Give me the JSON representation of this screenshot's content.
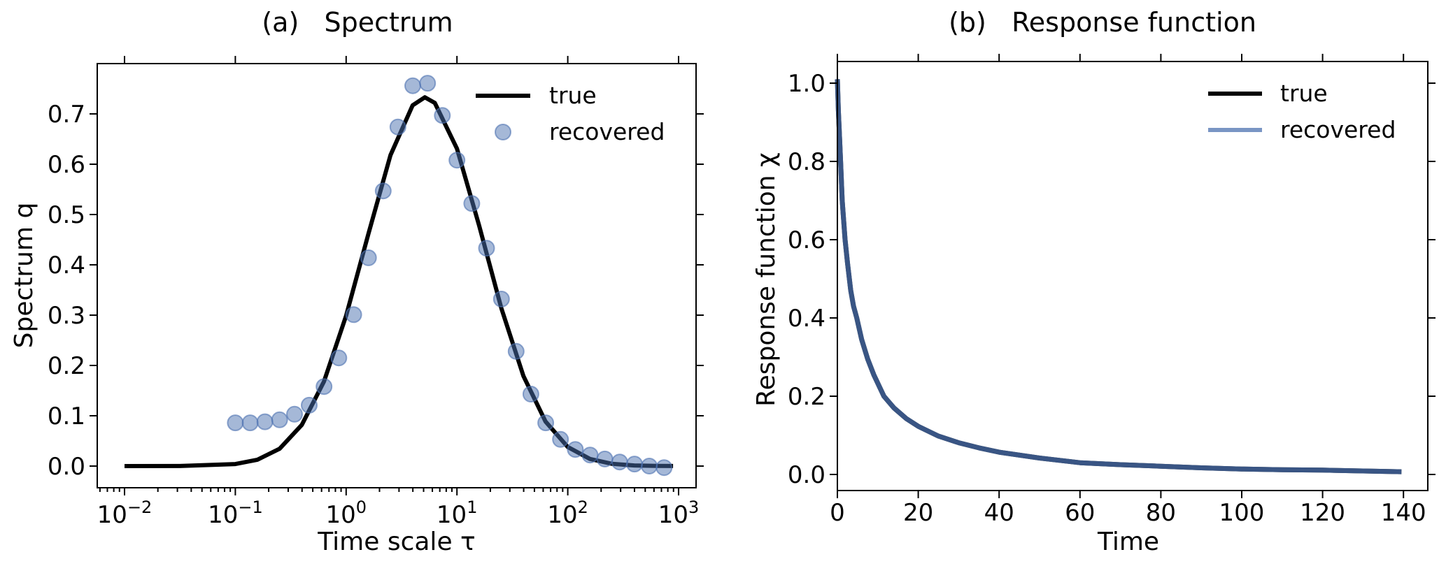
{
  "chart_data": [
    {
      "type": "line",
      "panel": "a",
      "title": "(a)   Spectrum",
      "xlabel": "Time scale τ",
      "ylabel": "Spectrum q",
      "xscale": "log",
      "xlim": [
        0.0063,
        1400
      ],
      "ylim": [
        -0.045,
        0.79
      ],
      "grid": false,
      "legend_position": "top-right",
      "x_ticks": [
        {
          "value": 0.01,
          "base": "10",
          "exp": "−2"
        },
        {
          "value": 0.1,
          "base": "10",
          "exp": "−1"
        },
        {
          "value": 1,
          "base": "10",
          "exp": "0"
        },
        {
          "value": 10,
          "base": "10",
          "exp": "1"
        },
        {
          "value": 100,
          "base": "10",
          "exp": "2"
        },
        {
          "value": 1000,
          "base": "10",
          "exp": "3"
        }
      ],
      "y_ticks": [
        {
          "value": 0.0,
          "label": "0.0"
        },
        {
          "value": 0.1,
          "label": "0.1"
        },
        {
          "value": 0.2,
          "label": "0.2"
        },
        {
          "value": 0.3,
          "label": "0.3"
        },
        {
          "value": 0.4,
          "label": "0.4"
        },
        {
          "value": 0.5,
          "label": "0.5"
        },
        {
          "value": 0.6,
          "label": "0.6"
        },
        {
          "value": 0.7,
          "label": "0.7"
        }
      ],
      "series": [
        {
          "name": "true",
          "kind": "line",
          "color": "#000000",
          "x": [
            0.01,
            0.0316,
            0.1,
            0.158,
            0.251,
            0.398,
            0.631,
            1.0,
            1.585,
            2.512,
            3.981,
            5.129,
            6.31,
            10.0,
            15.85,
            25.12,
            39.81,
            63.1,
            100.0,
            158.5,
            251.2,
            398.1,
            631.0,
            891.0
          ],
          "y": [
            0.0,
            0.0001,
            0.004,
            0.0127,
            0.0345,
            0.0818,
            0.168,
            0.299,
            0.461,
            0.618,
            0.717,
            0.733,
            0.722,
            0.631,
            0.478,
            0.314,
            0.179,
            0.0884,
            0.0379,
            0.0141,
            0.0045,
            0.0013,
            0.0003,
            0.0001
          ]
        },
        {
          "name": "recovered",
          "kind": "scatter",
          "color": "#4c72b0",
          "x": [
            0.1,
            0.136,
            0.185,
            0.251,
            0.342,
            0.464,
            0.632,
            0.859,
            1.17,
            1.59,
            2.16,
            2.93,
            3.99,
            5.43,
            7.38,
            10.0,
            13.6,
            18.5,
            25.2,
            34.2,
            46.5,
            63.3,
            86.0,
            117,
            159,
            216,
            294,
            400,
            544,
            740
          ],
          "y": [
            0.086,
            0.086,
            0.088,
            0.092,
            0.103,
            0.121,
            0.158,
            0.215,
            0.301,
            0.414,
            0.547,
            0.674,
            0.756,
            0.761,
            0.697,
            0.608,
            0.522,
            0.433,
            0.332,
            0.228,
            0.143,
            0.086,
            0.053,
            0.033,
            0.022,
            0.014,
            0.008,
            0.004,
            0.0,
            -0.003
          ]
        }
      ],
      "legend": [
        {
          "label": "true",
          "kind": "line",
          "color": "#000000"
        },
        {
          "label": "recovered",
          "kind": "marker",
          "color": "#4c72b0"
        }
      ]
    },
    {
      "type": "line",
      "panel": "b",
      "title": "(b)   Response function",
      "xlabel": "Time",
      "ylabel": "Response function χ",
      "xscale": "linear",
      "xlim": [
        -1,
        147
      ],
      "ylim": [
        -0.042,
        1.06
      ],
      "grid": false,
      "legend_position": "top-right",
      "x_ticks": [
        {
          "value": 0,
          "label": "0"
        },
        {
          "value": 20,
          "label": "20"
        },
        {
          "value": 40,
          "label": "40"
        },
        {
          "value": 60,
          "label": "60"
        },
        {
          "value": 80,
          "label": "80"
        },
        {
          "value": 100,
          "label": "100"
        },
        {
          "value": 120,
          "label": "120"
        },
        {
          "value": 140,
          "label": "140"
        }
      ],
      "y_ticks": [
        {
          "value": 0.0,
          "label": "0.0"
        },
        {
          "value": 0.2,
          "label": "0.2"
        },
        {
          "value": 0.4,
          "label": "0.4"
        },
        {
          "value": 0.6,
          "label": "0.6"
        },
        {
          "value": 0.8,
          "label": "0.8"
        },
        {
          "value": 1.0,
          "label": "1.0"
        }
      ],
      "series": [
        {
          "name": "true",
          "kind": "line",
          "color": "#000000",
          "x": [
            0,
            0.25,
            0.5,
            0.8,
            1.2,
            1.9,
            2.5,
            3.3,
            4,
            4.8,
            6,
            7.5,
            9,
            11.5,
            14,
            17,
            20,
            25,
            30,
            35,
            40,
            50,
            60,
            70,
            80,
            90,
            100,
            110,
            120,
            130,
            139.5
          ],
          "y": [
            1.01,
            0.93,
            0.87,
            0.8,
            0.7,
            0.6,
            0.54,
            0.47,
            0.43,
            0.4,
            0.345,
            0.295,
            0.255,
            0.2,
            0.17,
            0.143,
            0.123,
            0.098,
            0.081,
            0.068,
            0.057,
            0.042,
            0.03,
            0.025,
            0.021,
            0.017,
            0.014,
            0.012,
            0.011,
            0.009,
            0.007
          ]
        },
        {
          "name": "recovered",
          "kind": "line",
          "color": "#4c72b0",
          "x": [
            0,
            0.25,
            0.5,
            0.8,
            1.2,
            1.9,
            2.5,
            3.3,
            4,
            4.8,
            6,
            7.5,
            9,
            11.5,
            14,
            17,
            20,
            25,
            30,
            35,
            40,
            50,
            60,
            70,
            80,
            90,
            100,
            110,
            120,
            130,
            139.5
          ],
          "y": [
            1.01,
            0.93,
            0.87,
            0.8,
            0.7,
            0.6,
            0.54,
            0.47,
            0.43,
            0.4,
            0.345,
            0.295,
            0.255,
            0.2,
            0.17,
            0.143,
            0.123,
            0.098,
            0.081,
            0.068,
            0.057,
            0.042,
            0.03,
            0.025,
            0.021,
            0.017,
            0.014,
            0.012,
            0.011,
            0.009,
            0.007
          ]
        }
      ],
      "legend": [
        {
          "label": "true",
          "kind": "line",
          "color": "#000000"
        },
        {
          "label": "recovered",
          "kind": "line",
          "color": "#4c72b0"
        }
      ]
    }
  ]
}
